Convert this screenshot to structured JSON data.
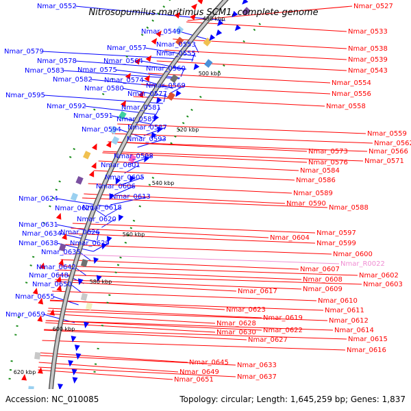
{
  "title": "Nitrosopumilus maritimus SCM1, complete genome",
  "accession": "Accession: NC_010085",
  "topology": "Topology: circular; Length: 1,645,259 bp; Genes: 1,837",
  "colors": {
    "left_strand": "#0000ff",
    "right_strand": "#ff0000",
    "rna": "#f08cd2",
    "backbone": "#999999",
    "green_tick": "#1a8c1a"
  },
  "ticks": [
    {
      "label": "480 kbp"
    },
    {
      "label": "500 kbp"
    },
    {
      "label": "520 kbp"
    },
    {
      "label": "540 kbp"
    },
    {
      "label": "560 kbp"
    },
    {
      "label": "580 kbp"
    },
    {
      "label": "600 kbp"
    },
    {
      "label": "620 kbp"
    }
  ],
  "left_labels": [
    "Nmar_0552",
    "Nmar_0549",
    "Nmar_0557",
    "Nmar_0553",
    "Nmar_0579",
    "Nmar_0555",
    "Nmar_0578",
    "Nmar_0564",
    "Nmar_0583",
    "Nmar_0575",
    "Nmar_0560",
    "Nmar_0582",
    "Nmar_0574",
    "Nmar_0569",
    "Nmar_0580",
    "Nmar_0577",
    "Nmar_0595",
    "Nmar_0592",
    "Nmar_0581",
    "Nmar_0591",
    "Nmar_0585",
    "Nmar_0594",
    "Nmar_0587",
    "Nmar_0593",
    "Nmar_0598",
    "Nmar_0601",
    "Nmar_0605",
    "Nmar_0606",
    "Nmar_0613",
    "Nmar_0624",
    "Nmar_0621",
    "Nmar_0618",
    "Nmar_0620",
    "Nmar_0631",
    "Nmar_0626",
    "Nmar_0634",
    "Nmar_0629",
    "Nmar_0638",
    "Nmar_0635",
    "Nmar_0642",
    "Nmar_0648",
    "Nmar_0650",
    "Nmar_0655",
    "Nmar_0659"
  ],
  "right_labels": [
    "Nmar_0527",
    "Nmar_0533",
    "Nmar_0538",
    "Nmar_0539",
    "Nmar_0543",
    "Nmar_0554",
    "Nmar_0556",
    "Nmar_0558",
    "Nmar_0559",
    "Nmar_0562",
    "Nmar_0566",
    "Nmar_0573",
    "Nmar_0571",
    "Nmar_0576",
    "Nmar_0584",
    "Nmar_0586",
    "Nmar_0589",
    "Nmar_0590",
    "Nmar_0588",
    "Nmar_0597",
    "Nmar_0604",
    "Nmar_0599",
    "Nmar_0600",
    "Nmar_R0022",
    "Nmar_0607",
    "Nmar_0602",
    "Nmar_0608",
    "Nmar_0603",
    "Nmar_0609",
    "Nmar_0610",
    "Nmar_0617",
    "Nmar_0611",
    "Nmar_0623",
    "Nmar_0619",
    "Nmar_0612",
    "Nmar_0628",
    "Nmar_0614",
    "Nmar_0622",
    "Nmar_0630",
    "Nmar_0615",
    "Nmar_0627",
    "Nmar_0616",
    "Nmar_0645",
    "Nmar_0633",
    "Nmar_0649",
    "Nmar_0637",
    "Nmar_0651"
  ]
}
